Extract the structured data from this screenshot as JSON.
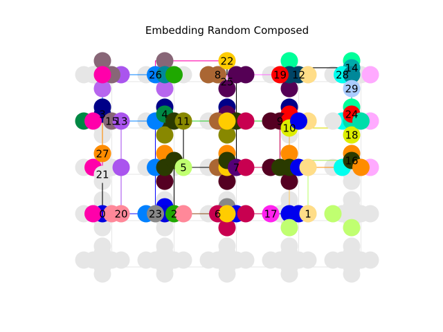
{
  "title": "Embedding Random Composed",
  "grid": {
    "host_color": "#e6e6e6",
    "cells_x": 5,
    "cells_y": 5
  },
  "edges": [
    {
      "a": 0,
      "b": 20,
      "color": "#000000"
    },
    {
      "a": 0,
      "b": 21,
      "color": "#000000"
    },
    {
      "a": 20,
      "b": 23,
      "color": "#0a0aff"
    },
    {
      "a": 23,
      "b": 2,
      "color": "#1fa800"
    },
    {
      "a": 2,
      "b": 6,
      "color": "#8b4513"
    },
    {
      "a": 6,
      "b": 17,
      "color": "#c80050"
    },
    {
      "a": 17,
      "b": 1,
      "color": "#0000cc"
    },
    {
      "a": 21,
      "b": 27,
      "color": "#ff00aa"
    },
    {
      "a": 27,
      "b": 3,
      "color": "#ff8c00"
    },
    {
      "a": 3,
      "b": 15,
      "color": "#000080"
    },
    {
      "a": 15,
      "b": 13,
      "color": "#aa55ee"
    },
    {
      "a": 13,
      "b": 4,
      "color": "#0080ff"
    },
    {
      "a": 4,
      "b": 11,
      "color": "#008844"
    },
    {
      "a": 11,
      "b": 9,
      "color": "#22cc22"
    },
    {
      "a": 9,
      "b": 10,
      "color": "#ff0000"
    },
    {
      "a": 10,
      "b": 18,
      "color": "#dddd00"
    },
    {
      "a": 18,
      "b": 24,
      "color": "#00ddaa"
    },
    {
      "a": 24,
      "b": 29,
      "color": "#00aaaa"
    },
    {
      "a": 29,
      "b": 14,
      "color": "#00ff99"
    },
    {
      "a": 14,
      "b": 12,
      "color": "#000000"
    },
    {
      "a": 12,
      "b": 19,
      "color": "#ff0000"
    },
    {
      "a": 19,
      "b": 25,
      "color": "#ff66ff"
    },
    {
      "a": 25,
      "b": 8,
      "color": "#8b4513"
    },
    {
      "a": 8,
      "b": 22,
      "color": "#000000"
    },
    {
      "a": 22,
      "b": 26,
      "color": "#ff00aa"
    },
    {
      "a": 26,
      "b": 3,
      "color": "#0080ff"
    },
    {
      "a": 5,
      "b": 7,
      "color": "#000000"
    },
    {
      "a": 7,
      "b": 16,
      "color": "#ff8c00"
    },
    {
      "a": 16,
      "b": 10,
      "color": "#000000"
    },
    {
      "a": 5,
      "b": 2,
      "color": "#000000"
    },
    {
      "a": 5,
      "b": 11,
      "color": "#000000"
    },
    {
      "a": 7,
      "b": 9,
      "color": "#c80050"
    },
    {
      "a": 1,
      "b": 10,
      "color": "#ffcc66"
    },
    {
      "a": 16,
      "b": 1,
      "color": "#c0ff70"
    },
    {
      "a": 25,
      "b": 7,
      "color": "#000000"
    },
    {
      "a": 13,
      "b": 20,
      "color": "#aa55ee"
    },
    {
      "a": 4,
      "b": 23,
      "color": "#0a0aff"
    }
  ],
  "nodes": [
    {
      "id": 0,
      "label": "0",
      "x": 0.0,
      "y": 3.0,
      "chain": [
        {
          "c": 0.0,
          "r": 3.0,
          "color": "#0000e0"
        },
        {
          "c": -0.15,
          "r": 3.0,
          "color": "#ff00aa"
        }
      ]
    },
    {
      "id": 1,
      "label": "1",
      "x": 3.3,
      "y": 3.0,
      "chain": [
        {
          "c": 3.3,
          "r": 3.0,
          "color": "#ffdd88"
        },
        {
          "c": 3.0,
          "r": 3.3,
          "color": "#c0ff70"
        }
      ]
    },
    {
      "id": 2,
      "label": "2",
      "x": 1.15,
      "y": 3.0,
      "chain": [
        {
          "c": 1.0,
          "r": 3.0,
          "color": "#0000e0"
        },
        {
          "c": 1.15,
          "r": 3.0,
          "color": "#1fa800"
        },
        {
          "c": 1.3,
          "r": 3.0,
          "color": "#ff8899"
        }
      ]
    },
    {
      "id": 3,
      "label": "3",
      "x": 0.0,
      "y": 0.85,
      "chain": [
        {
          "c": 0.0,
          "r": 0.7,
          "color": "#000088"
        },
        {
          "c": 0.0,
          "r": 0.85,
          "color": "#000088"
        }
      ]
    },
    {
      "id": 4,
      "label": "4",
      "x": 1.0,
      "y": 0.85,
      "chain": [
        {
          "c": 1.0,
          "r": 0.7,
          "color": "#000088"
        },
        {
          "c": 1.0,
          "r": 0.85,
          "color": "#008844"
        },
        {
          "c": 1.0,
          "r": 1.3,
          "color": "#888800"
        }
      ]
    },
    {
      "id": 5,
      "label": "5",
      "x": 1.3,
      "y": 2.0,
      "chain": [
        {
          "c": 1.0,
          "r": 2.0,
          "color": "#2a3a00"
        },
        {
          "c": 1.15,
          "r": 1.85,
          "color": "#2a3a00"
        },
        {
          "c": 1.3,
          "r": 2.0,
          "color": "#c0ff70"
        }
      ]
    },
    {
      "id": 6,
      "label": "6",
      "x": 1.85,
      "y": 3.0,
      "chain": [
        {
          "c": 1.85,
          "r": 3.0,
          "color": "#c80050"
        },
        {
          "c": 2.0,
          "r": 3.0,
          "color": "#ffcc00"
        }
      ]
    },
    {
      "id": 7,
      "label": "7",
      "x": 2.15,
      "y": 2.0,
      "chain": [
        {
          "c": 2.0,
          "r": 1.85,
          "color": "#2a3a00"
        },
        {
          "c": 2.15,
          "r": 2.0,
          "color": "#550077"
        },
        {
          "c": 2.3,
          "r": 2.0,
          "color": "#c80050"
        }
      ]
    },
    {
      "id": 8,
      "label": "8",
      "x": 1.85,
      "y": 0.0,
      "chain": [
        {
          "c": 1.7,
          "r": 0.0,
          "color": "#aa6633"
        },
        {
          "c": 1.85,
          "r": 0.0,
          "color": "#aa6633"
        }
      ]
    },
    {
      "id": 9,
      "label": "9",
      "x": 2.85,
      "y": 1.0,
      "chain": [
        {
          "c": 2.7,
          "r": 1.0,
          "color": "#550022"
        },
        {
          "c": 2.85,
          "r": 1.0,
          "color": "#550022"
        }
      ]
    },
    {
      "id": 10,
      "label": "10",
      "x": 3.0,
      "y": 1.15,
      "chain": [
        {
          "c": 3.0,
          "r": 1.0,
          "color": "#ff0000"
        },
        {
          "c": 3.0,
          "r": 1.15,
          "color": "#ddee00"
        },
        {
          "c": 3.15,
          "r": 1.0,
          "color": "#0000ee"
        }
      ]
    },
    {
      "id": 11,
      "label": "11",
      "x": 1.3,
      "y": 1.0,
      "chain": [
        {
          "c": 1.15,
          "r": 1.0,
          "color": "#2a3a00"
        },
        {
          "c": 1.3,
          "r": 1.0,
          "color": "#888800"
        }
      ]
    },
    {
      "id": 12,
      "label": "12",
      "x": 3.15,
      "y": 0.0,
      "chain": [
        {
          "c": 3.0,
          "r": 0.0,
          "color": "#004466"
        },
        {
          "c": 3.15,
          "r": 0.0,
          "color": "#004466"
        },
        {
          "c": 3.3,
          "r": 0.0,
          "color": "#ffdd88"
        }
      ]
    },
    {
      "id": 13,
      "label": "13",
      "x": 0.3,
      "y": 1.0,
      "chain": [
        {
          "c": 0.15,
          "r": 1.0,
          "color": "#886677"
        },
        {
          "c": 0.3,
          "r": 1.0,
          "color": "#aa55ee"
        }
      ]
    },
    {
      "id": 14,
      "label": "14",
      "x": 4.0,
      "y": -0.15,
      "chain": [
        {
          "c": 4.0,
          "r": -0.3,
          "color": "#00ff99"
        },
        {
          "c": 4.0,
          "r": -0.15,
          "color": "#00aaaa"
        }
      ]
    },
    {
      "id": 15,
      "label": "15",
      "x": 0.15,
      "y": 1.0,
      "chain": [
        {
          "c": -0.3,
          "r": 1.0,
          "color": "#008844"
        },
        {
          "c": -0.15,
          "r": 1.0,
          "color": "#ff00aa"
        }
      ]
    },
    {
      "id": 16,
      "label": "16",
      "x": 4.0,
      "y": 1.85,
      "chain": [
        {
          "c": 4.0,
          "r": 1.7,
          "color": "#ff8c00"
        },
        {
          "c": 4.0,
          "r": 1.85,
          "color": "#2a3a00"
        },
        {
          "c": 4.15,
          "r": 2.0,
          "color": "#ff8c00"
        }
      ]
    },
    {
      "id": 17,
      "label": "17",
      "x": 2.7,
      "y": 3.0,
      "chain": [
        {
          "c": 2.7,
          "r": 3.0,
          "color": "#ff22ee"
        }
      ]
    },
    {
      "id": 18,
      "label": "18",
      "x": 4.0,
      "y": 1.3,
      "chain": [
        {
          "c": 4.0,
          "r": 1.3,
          "color": "#ddee00"
        }
      ]
    },
    {
      "id": 19,
      "label": "19",
      "x": 2.85,
      "y": 0.0,
      "chain": [
        {
          "c": 2.85,
          "r": 0.0,
          "color": "#ff0000"
        }
      ]
    },
    {
      "id": 20,
      "label": "20",
      "x": 0.3,
      "y": 3.0,
      "chain": [
        {
          "c": 0.15,
          "r": 3.0,
          "color": "#ff8899"
        },
        {
          "c": 0.3,
          "r": 3.0,
          "color": "#ff8899"
        }
      ]
    },
    {
      "id": 21,
      "label": "21",
      "x": 0.0,
      "y": 2.15,
      "chain": [
        {
          "c": -0.15,
          "r": 2.0,
          "color": "#ff00aa"
        },
        {
          "c": 0.0,
          "r": 2.15,
          "color": "#e6e6e6"
        }
      ]
    },
    {
      "id": 22,
      "label": "22",
      "x": 2.0,
      "y": -0.3,
      "chain": [
        {
          "c": 2.0,
          "r": -0.3,
          "color": "#ffcc00"
        }
      ]
    },
    {
      "id": 23,
      "label": "23",
      "x": 0.85,
      "y": 3.0,
      "chain": [
        {
          "c": 0.7,
          "r": 3.0,
          "color": "#0080ff"
        },
        {
          "c": 0.85,
          "r": 3.0,
          "color": "#888888"
        }
      ]
    },
    {
      "id": 24,
      "label": "24",
      "x": 4.0,
      "y": 0.85,
      "chain": [
        {
          "c": 4.0,
          "r": 0.7,
          "color": "#00ff99"
        },
        {
          "c": 4.0,
          "r": 0.85,
          "color": "#ff0000"
        },
        {
          "c": 4.15,
          "r": 1.0,
          "color": "#00ddaa"
        }
      ]
    },
    {
      "id": 25,
      "label": "25",
      "x": 2.0,
      "y": 0.15,
      "chain": [
        {
          "c": 2.0,
          "r": 0.3,
          "color": "#550055"
        },
        {
          "c": 2.15,
          "r": 0.0,
          "color": "#550055"
        }
      ]
    },
    {
      "id": 26,
      "label": "26",
      "x": 0.85,
      "y": 0.0,
      "chain": [
        {
          "c": 0.85,
          "r": 0.0,
          "color": "#0080ff"
        },
        {
          "c": 1.0,
          "r": 0.0,
          "color": "#008899"
        },
        {
          "c": 1.15,
          "r": 0.0,
          "color": "#1fa800"
        }
      ]
    },
    {
      "id": 27,
      "label": "27",
      "x": 0.0,
      "y": 1.7,
      "chain": [
        {
          "c": 0.0,
          "r": 1.7,
          "color": "#ff8c00"
        }
      ]
    },
    {
      "id": 28,
      "label": "28",
      "x": 3.85,
      "y": 0.0,
      "chain": [
        {
          "c": 3.85,
          "r": 0.0,
          "color": "#00ffee"
        },
        {
          "c": 4.0,
          "r": 0.0,
          "color": "#008899"
        }
      ]
    },
    {
      "id": 29,
      "label": "29",
      "x": 4.0,
      "y": 0.3,
      "chain": [
        {
          "c": 4.0,
          "r": 0.3,
          "color": "#aaccff"
        }
      ]
    }
  ],
  "extra_qubits": [
    {
      "c": 0.0,
      "r": -0.3,
      "color": "#886677"
    },
    {
      "c": 1.0,
      "r": -0.3,
      "color": "#886677"
    },
    {
      "c": 3.0,
      "r": -0.3,
      "color": "#00ff99"
    },
    {
      "c": 0.0,
      "r": 0.3,
      "color": "#b766ee"
    },
    {
      "c": 1.0,
      "r": 0.3,
      "color": "#b766ee"
    },
    {
      "c": 3.0,
      "r": 0.3,
      "color": "#550055"
    },
    {
      "c": 0.3,
      "r": 0.0,
      "color": "#aa55ee"
    },
    {
      "c": 0.15,
      "r": 0.0,
      "color": "#886677"
    },
    {
      "c": 0.0,
      "r": 0.0,
      "color": "#ff00aa"
    },
    {
      "c": 2.3,
      "r": 0.0,
      "color": "#550055"
    },
    {
      "c": 3.0,
      "r": 0.7,
      "color": "#000088"
    },
    {
      "c": 2.0,
      "r": 0.7,
      "color": "#000088"
    },
    {
      "c": 2.0,
      "r": 0.85,
      "color": "#550055"
    },
    {
      "c": 2.0,
      "r": 1.3,
      "color": "#888800"
    },
    {
      "c": 2.15,
      "r": 1.0,
      "color": "#2a3a00"
    },
    {
      "c": 2.3,
      "r": 1.0,
      "color": "#c80050"
    },
    {
      "c": 1.85,
      "r": 1.0,
      "color": "#aa6633"
    },
    {
      "c": 2.0,
      "r": 1.0,
      "color": "#ffcc00"
    },
    {
      "c": 1.0,
      "r": 1.0,
      "color": "#2a3a00"
    },
    {
      "c": 0.85,
      "r": 1.0,
      "color": "#0080ff"
    },
    {
      "c": 3.3,
      "r": 1.0,
      "color": "#ffdd88"
    },
    {
      "c": 3.85,
      "r": 1.0,
      "color": "#00ffee"
    },
    {
      "c": 4.0,
      "r": 1.0,
      "color": "#00ddaa"
    },
    {
      "c": 4.3,
      "r": 1.0,
      "color": "#ffaaff"
    },
    {
      "c": 4.3,
      "r": 0.0,
      "color": "#ffaaff"
    },
    {
      "c": 4.3,
      "r": 2.0,
      "color": "#ffaaff"
    },
    {
      "c": 3.0,
      "r": 0.85,
      "color": "#ff0000"
    },
    {
      "c": 1.0,
      "r": 1.7,
      "color": "#ff8c00"
    },
    {
      "c": 2.0,
      "r": 1.7,
      "color": "#ff8c00"
    },
    {
      "c": 3.0,
      "r": 1.7,
      "color": "#ff8c00"
    },
    {
      "c": 1.0,
      "r": 2.3,
      "color": "#550022"
    },
    {
      "c": 2.0,
      "r": 2.3,
      "color": "#550022"
    },
    {
      "c": 3.0,
      "r": 2.3,
      "color": "#550022"
    },
    {
      "c": 0.85,
      "r": 2.0,
      "color": "#0080ff"
    },
    {
      "c": 1.85,
      "r": 2.0,
      "color": "#aa6633"
    },
    {
      "c": 2.0,
      "r": 2.0,
      "color": "#ffcc00"
    },
    {
      "c": 2.7,
      "r": 2.0,
      "color": "#550022"
    },
    {
      "c": 2.85,
      "r": 2.0,
      "color": "#2a3a00"
    },
    {
      "c": 3.0,
      "r": 2.0,
      "color": "#2a3a00"
    },
    {
      "c": 3.15,
      "r": 2.0,
      "color": "#0000ee"
    },
    {
      "c": 3.3,
      "r": 2.0,
      "color": "#ffdd88"
    },
    {
      "c": 3.85,
      "r": 2.0,
      "color": "#00ffee"
    },
    {
      "c": 0.3,
      "r": 2.0,
      "color": "#aa55ee"
    },
    {
      "c": 3.7,
      "r": 1.0,
      "color": "#e6e6e6"
    },
    {
      "c": 2.0,
      "r": 2.85,
      "color": "#888888"
    },
    {
      "c": 1.0,
      "r": 2.85,
      "color": "#0000ee"
    },
    {
      "c": 2.0,
      "r": 3.3,
      "color": "#c80050"
    },
    {
      "c": 2.15,
      "r": 3.0,
      "color": "#0000ee"
    },
    {
      "c": 3.0,
      "r": 3.0,
      "color": "#0000ee"
    },
    {
      "c": 3.15,
      "r": 3.0,
      "color": "#0000ee"
    },
    {
      "c": 2.3,
      "r": 3.0,
      "color": "#c80050"
    },
    {
      "c": 3.7,
      "r": 3.0,
      "color": "#c0ff70"
    },
    {
      "c": 4.0,
      "r": 3.3,
      "color": "#c0ff70"
    },
    {
      "c": 3.3,
      "r": 1.0,
      "color": "#ffdd88"
    }
  ]
}
